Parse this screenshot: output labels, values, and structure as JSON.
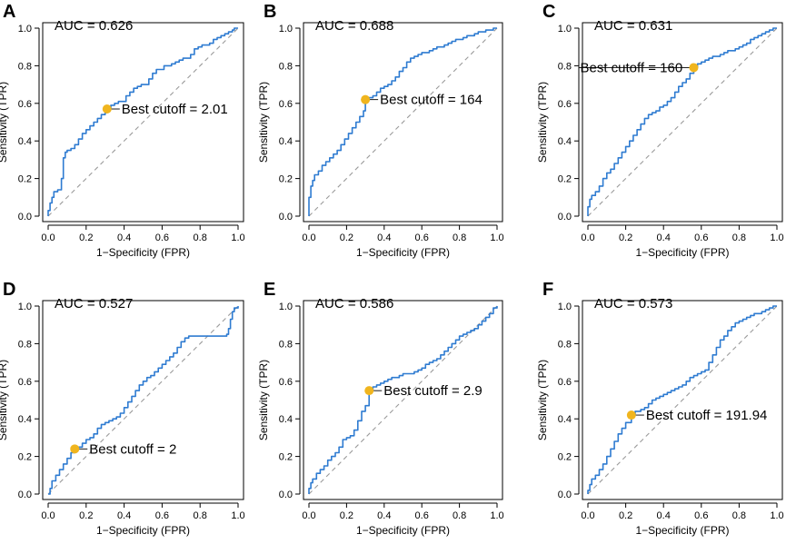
{
  "figure": {
    "x_axis_label": "1−Specificity (FPR)",
    "y_axis_label": "Sensitivity (TPR)",
    "tick_labels": [
      "0.0",
      "0.2",
      "0.4",
      "0.6",
      "0.8",
      "1.0"
    ]
  },
  "chart_data": [
    {
      "type": "line",
      "panel": "A",
      "auc_label": "AUC = 0.626",
      "cutoff_label": "Best cutoff = 2.01",
      "cutoff_point": {
        "fpr": 0.31,
        "tpr": 0.57
      },
      "xlim": [
        0,
        1
      ],
      "ylim": [
        0,
        1
      ],
      "xlabel": "1−Specificity (FPR)",
      "ylabel": "Sensitivity (TPR)",
      "fpr": [
        0.0,
        0.0,
        0.01,
        0.02,
        0.03,
        0.05,
        0.07,
        0.08,
        0.09,
        0.1,
        0.12,
        0.14,
        0.16,
        0.18,
        0.2,
        0.22,
        0.24,
        0.26,
        0.28,
        0.3,
        0.31,
        0.33,
        0.35,
        0.37,
        0.39,
        0.41,
        0.43,
        0.45,
        0.47,
        0.49,
        0.51,
        0.53,
        0.55,
        0.57,
        0.59,
        0.61,
        0.63,
        0.65,
        0.67,
        0.69,
        0.71,
        0.73,
        0.75,
        0.77,
        0.79,
        0.81,
        0.83,
        0.85,
        0.87,
        0.89,
        0.91,
        0.93,
        0.95,
        0.97,
        0.98,
        1.0
      ],
      "tpr": [
        0.0,
        0.03,
        0.07,
        0.1,
        0.13,
        0.14,
        0.2,
        0.31,
        0.34,
        0.35,
        0.36,
        0.38,
        0.41,
        0.44,
        0.46,
        0.48,
        0.5,
        0.52,
        0.54,
        0.55,
        0.57,
        0.59,
        0.6,
        0.61,
        0.61,
        0.64,
        0.66,
        0.68,
        0.69,
        0.7,
        0.7,
        0.73,
        0.76,
        0.78,
        0.78,
        0.8,
        0.8,
        0.81,
        0.82,
        0.83,
        0.84,
        0.84,
        0.86,
        0.89,
        0.9,
        0.91,
        0.91,
        0.92,
        0.94,
        0.95,
        0.96,
        0.97,
        0.98,
        0.99,
        1.0,
        1.0
      ]
    },
    {
      "type": "line",
      "panel": "B",
      "auc_label": "AUC = 0.688",
      "cutoff_label": "Best cutoff = 164",
      "cutoff_point": {
        "fpr": 0.3,
        "tpr": 0.62
      },
      "xlim": [
        0,
        1
      ],
      "ylim": [
        0,
        1
      ],
      "xlabel": "1−Specificity (FPR)",
      "ylabel": "Sensitivity (TPR)",
      "fpr": [
        0.0,
        0.0,
        0.01,
        0.02,
        0.03,
        0.05,
        0.07,
        0.09,
        0.11,
        0.13,
        0.15,
        0.17,
        0.19,
        0.21,
        0.23,
        0.25,
        0.27,
        0.29,
        0.3,
        0.32,
        0.34,
        0.36,
        0.38,
        0.4,
        0.42,
        0.44,
        0.46,
        0.48,
        0.5,
        0.52,
        0.54,
        0.56,
        0.58,
        0.6,
        0.62,
        0.64,
        0.66,
        0.68,
        0.7,
        0.72,
        0.74,
        0.76,
        0.78,
        0.8,
        0.82,
        0.84,
        0.86,
        0.88,
        0.9,
        0.92,
        0.94,
        0.96,
        0.98,
        1.0
      ],
      "tpr": [
        0.0,
        0.1,
        0.16,
        0.19,
        0.22,
        0.24,
        0.27,
        0.29,
        0.31,
        0.33,
        0.35,
        0.38,
        0.41,
        0.44,
        0.47,
        0.5,
        0.53,
        0.56,
        0.62,
        0.63,
        0.64,
        0.66,
        0.68,
        0.69,
        0.7,
        0.72,
        0.74,
        0.77,
        0.79,
        0.82,
        0.84,
        0.85,
        0.86,
        0.87,
        0.87,
        0.88,
        0.89,
        0.9,
        0.9,
        0.91,
        0.92,
        0.93,
        0.94,
        0.94,
        0.95,
        0.96,
        0.96,
        0.97,
        0.98,
        0.98,
        0.99,
        0.99,
        1.0,
        1.0
      ]
    },
    {
      "type": "line",
      "panel": "C",
      "auc_label": "AUC = 0.631",
      "cutoff_label": "Best cutoff = 160",
      "cutoff_point": {
        "fpr": 0.56,
        "tpr": 0.79
      },
      "xlim": [
        0,
        1
      ],
      "ylim": [
        0,
        1
      ],
      "xlabel": "1−Specificity (FPR)",
      "ylabel": "Sensitivity (TPR)",
      "fpr": [
        0.0,
        0.0,
        0.01,
        0.02,
        0.04,
        0.06,
        0.08,
        0.1,
        0.12,
        0.14,
        0.16,
        0.18,
        0.2,
        0.22,
        0.24,
        0.26,
        0.28,
        0.3,
        0.32,
        0.34,
        0.36,
        0.38,
        0.4,
        0.42,
        0.44,
        0.46,
        0.48,
        0.5,
        0.52,
        0.54,
        0.56,
        0.58,
        0.6,
        0.62,
        0.64,
        0.66,
        0.68,
        0.7,
        0.72,
        0.74,
        0.76,
        0.78,
        0.8,
        0.82,
        0.84,
        0.86,
        0.88,
        0.9,
        0.92,
        0.94,
        0.96,
        0.98,
        1.0
      ],
      "tpr": [
        0.0,
        0.05,
        0.09,
        0.11,
        0.13,
        0.16,
        0.2,
        0.23,
        0.25,
        0.28,
        0.31,
        0.34,
        0.37,
        0.4,
        0.43,
        0.46,
        0.49,
        0.52,
        0.54,
        0.55,
        0.56,
        0.58,
        0.59,
        0.61,
        0.63,
        0.66,
        0.69,
        0.71,
        0.73,
        0.76,
        0.79,
        0.81,
        0.82,
        0.83,
        0.84,
        0.85,
        0.85,
        0.86,
        0.87,
        0.88,
        0.88,
        0.89,
        0.9,
        0.91,
        0.92,
        0.94,
        0.95,
        0.96,
        0.97,
        0.98,
        0.99,
        1.0,
        1.0
      ]
    },
    {
      "type": "line",
      "panel": "D",
      "auc_label": "AUC = 0.527",
      "cutoff_label": "Best cutoff = 2",
      "cutoff_point": {
        "fpr": 0.14,
        "tpr": 0.24
      },
      "xlim": [
        0,
        1
      ],
      "ylim": [
        0,
        1
      ],
      "xlabel": "1−Specificity (FPR)",
      "ylabel": "Sensitivity (TPR)",
      "fpr": [
        0.0,
        0.01,
        0.02,
        0.04,
        0.06,
        0.08,
        0.1,
        0.12,
        0.14,
        0.16,
        0.18,
        0.2,
        0.22,
        0.24,
        0.26,
        0.28,
        0.3,
        0.32,
        0.34,
        0.36,
        0.38,
        0.4,
        0.42,
        0.44,
        0.46,
        0.48,
        0.5,
        0.52,
        0.54,
        0.56,
        0.58,
        0.6,
        0.62,
        0.64,
        0.66,
        0.68,
        0.7,
        0.72,
        0.74,
        0.76,
        0.78,
        0.8,
        0.82,
        0.84,
        0.86,
        0.88,
        0.9,
        0.92,
        0.94,
        0.95,
        0.96,
        0.97,
        0.98,
        1.0
      ],
      "tpr": [
        0.0,
        0.03,
        0.07,
        0.1,
        0.13,
        0.16,
        0.19,
        0.22,
        0.24,
        0.25,
        0.27,
        0.29,
        0.3,
        0.32,
        0.35,
        0.37,
        0.38,
        0.39,
        0.4,
        0.41,
        0.43,
        0.46,
        0.49,
        0.52,
        0.55,
        0.58,
        0.6,
        0.62,
        0.63,
        0.65,
        0.67,
        0.69,
        0.71,
        0.73,
        0.75,
        0.78,
        0.81,
        0.83,
        0.84,
        0.84,
        0.84,
        0.84,
        0.84,
        0.84,
        0.84,
        0.84,
        0.84,
        0.84,
        0.85,
        0.88,
        0.93,
        0.97,
        0.99,
        1.0
      ]
    },
    {
      "type": "line",
      "panel": "E",
      "auc_label": "AUC = 0.586",
      "cutoff_label": "Best cutoff = 2.9",
      "cutoff_point": {
        "fpr": 0.32,
        "tpr": 0.55
      },
      "xlim": [
        0,
        1
      ],
      "ylim": [
        0,
        1
      ],
      "xlabel": "1−Specificity (FPR)",
      "ylabel": "Sensitivity (TPR)",
      "fpr": [
        0.0,
        0.0,
        0.01,
        0.02,
        0.04,
        0.06,
        0.08,
        0.1,
        0.12,
        0.14,
        0.16,
        0.18,
        0.2,
        0.22,
        0.24,
        0.26,
        0.28,
        0.3,
        0.32,
        0.34,
        0.36,
        0.38,
        0.4,
        0.42,
        0.44,
        0.46,
        0.48,
        0.5,
        0.52,
        0.54,
        0.56,
        0.58,
        0.6,
        0.62,
        0.64,
        0.66,
        0.68,
        0.7,
        0.72,
        0.74,
        0.76,
        0.78,
        0.8,
        0.82,
        0.84,
        0.86,
        0.88,
        0.9,
        0.92,
        0.94,
        0.96,
        0.98,
        1.0
      ],
      "tpr": [
        0.0,
        0.03,
        0.06,
        0.08,
        0.11,
        0.13,
        0.15,
        0.18,
        0.2,
        0.22,
        0.25,
        0.29,
        0.3,
        0.31,
        0.34,
        0.39,
        0.44,
        0.47,
        0.55,
        0.57,
        0.58,
        0.59,
        0.6,
        0.61,
        0.62,
        0.62,
        0.63,
        0.64,
        0.64,
        0.64,
        0.65,
        0.66,
        0.67,
        0.69,
        0.7,
        0.71,
        0.72,
        0.74,
        0.76,
        0.78,
        0.8,
        0.82,
        0.84,
        0.85,
        0.86,
        0.87,
        0.88,
        0.9,
        0.92,
        0.94,
        0.96,
        0.99,
        1.0
      ]
    },
    {
      "type": "line",
      "panel": "F",
      "auc_label": "AUC = 0.573",
      "cutoff_label": "Best cutoff = 191.94",
      "cutoff_point": {
        "fpr": 0.23,
        "tpr": 0.42
      },
      "xlim": [
        0,
        1
      ],
      "ylim": [
        0,
        1
      ],
      "xlabel": "1−Specificity (FPR)",
      "ylabel": "Sensitivity (TPR)",
      "fpr": [
        0.0,
        0.0,
        0.01,
        0.02,
        0.04,
        0.06,
        0.08,
        0.1,
        0.12,
        0.14,
        0.16,
        0.18,
        0.2,
        0.23,
        0.25,
        0.28,
        0.3,
        0.32,
        0.34,
        0.36,
        0.38,
        0.4,
        0.42,
        0.44,
        0.46,
        0.48,
        0.5,
        0.52,
        0.54,
        0.56,
        0.58,
        0.6,
        0.62,
        0.64,
        0.66,
        0.68,
        0.7,
        0.72,
        0.74,
        0.76,
        0.78,
        0.8,
        0.82,
        0.84,
        0.86,
        0.88,
        0.9,
        0.92,
        0.94,
        0.96,
        0.98,
        1.0
      ],
      "tpr": [
        0.0,
        0.02,
        0.05,
        0.08,
        0.1,
        0.13,
        0.16,
        0.2,
        0.24,
        0.28,
        0.32,
        0.35,
        0.38,
        0.42,
        0.44,
        0.45,
        0.46,
        0.48,
        0.5,
        0.51,
        0.52,
        0.53,
        0.54,
        0.55,
        0.56,
        0.57,
        0.58,
        0.6,
        0.62,
        0.63,
        0.64,
        0.65,
        0.66,
        0.7,
        0.74,
        0.78,
        0.82,
        0.84,
        0.87,
        0.89,
        0.91,
        0.92,
        0.93,
        0.94,
        0.95,
        0.96,
        0.96,
        0.97,
        0.98,
        0.99,
        1.0,
        1.0
      ]
    }
  ]
}
